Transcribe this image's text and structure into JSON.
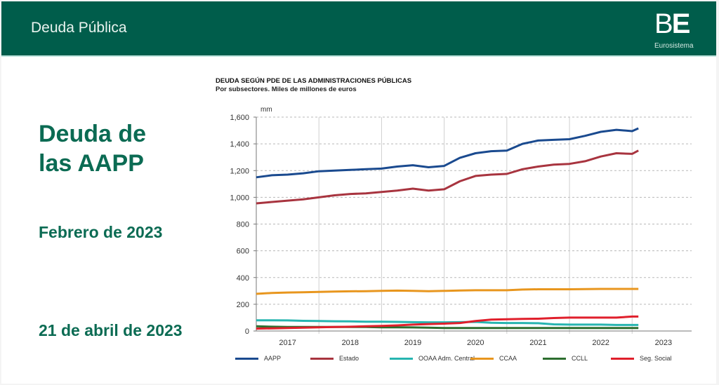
{
  "header": {
    "title": "Deuda Pública",
    "logo": {
      "mark_b": "B",
      "mark_e": "E",
      "subtitle": "Eurosistema"
    }
  },
  "left_panel": {
    "title_line1": "Deuda de",
    "title_line2": "las AAPP",
    "period": "Febrero de 2023",
    "date": "21 de abril de 2023"
  },
  "colors": {
    "header_bg": "#005d4b",
    "accent_text": "#0b6b53"
  },
  "chart_data": {
    "type": "line",
    "title": "DEUDA SEGÚN PDE DE LAS ADMINISTRACIONES PÚBLICAS",
    "subtitle": "Por subsectores. Miles de millones de euros",
    "unit_label": "mm",
    "xlabel": "",
    "ylabel": "",
    "ylim": [
      0,
      1600
    ],
    "xlim": [
      2017.0,
      2023.95
    ],
    "yticks": [
      0,
      200,
      400,
      600,
      800,
      1000,
      1200,
      1400,
      1600
    ],
    "ytick_labels": [
      "0",
      "200",
      "400",
      "600",
      "800",
      "1,000",
      "1,200",
      "1,400",
      "1,600"
    ],
    "xtick_labels": [
      "2017",
      "2018",
      "2019",
      "2020",
      "2021",
      "2022",
      "2023"
    ],
    "xtick_years": [
      2017,
      2018,
      2019,
      2020,
      2021,
      2022,
      2023
    ],
    "grid": true,
    "legend_position": "bottom",
    "x": [
      2017.0,
      2017.25,
      2017.5,
      2017.75,
      2018.0,
      2018.25,
      2018.5,
      2018.75,
      2019.0,
      2019.25,
      2019.5,
      2019.75,
      2020.0,
      2020.25,
      2020.5,
      2020.75,
      2021.0,
      2021.25,
      2021.5,
      2021.75,
      2022.0,
      2022.25,
      2022.5,
      2022.75,
      2023.0,
      2023.1
    ],
    "series": [
      {
        "name": "AAPP",
        "color": "#1a4a8f",
        "values": [
          1150,
          1165,
          1170,
          1180,
          1195,
          1200,
          1205,
          1210,
          1215,
          1230,
          1240,
          1225,
          1235,
          1295,
          1330,
          1345,
          1350,
          1400,
          1425,
          1430,
          1435,
          1460,
          1490,
          1505,
          1495,
          1516
        ]
      },
      {
        "name": "Estado",
        "color": "#a8343f",
        "values": [
          955,
          965,
          975,
          985,
          1000,
          1015,
          1025,
          1030,
          1040,
          1050,
          1065,
          1050,
          1060,
          1120,
          1160,
          1170,
          1175,
          1210,
          1230,
          1245,
          1250,
          1270,
          1305,
          1330,
          1325,
          1350
        ]
      },
      {
        "name": "CCAA",
        "color": "#e8961e",
        "values": [
          278,
          285,
          288,
          290,
          292,
          295,
          297,
          298,
          300,
          302,
          300,
          298,
          300,
          303,
          305,
          305,
          305,
          310,
          312,
          312,
          312,
          313,
          315,
          315,
          315,
          315
        ]
      },
      {
        "name": "OOAA Adm. Central",
        "color": "#27b5b0",
        "values": [
          80,
          80,
          79,
          76,
          75,
          73,
          72,
          70,
          70,
          68,
          66,
          65,
          65,
          66,
          68,
          62,
          60,
          60,
          58,
          50,
          48,
          48,
          48,
          45,
          45,
          45
        ]
      },
      {
        "name": "CCLL",
        "color": "#2d6e2f",
        "values": [
          35,
          32,
          30,
          30,
          30,
          30,
          30,
          30,
          28,
          28,
          27,
          25,
          22,
          22,
          22,
          22,
          22,
          22,
          22,
          22,
          22,
          22,
          22,
          22,
          22,
          22
        ]
      },
      {
        "name": "Seg. Social",
        "color": "#e01f2b",
        "values": [
          18,
          20,
          22,
          25,
          28,
          30,
          32,
          35,
          38,
          42,
          48,
          52,
          55,
          60,
          75,
          85,
          88,
          90,
          92,
          97,
          100,
          100,
          100,
          100,
          108,
          108
        ]
      }
    ]
  }
}
